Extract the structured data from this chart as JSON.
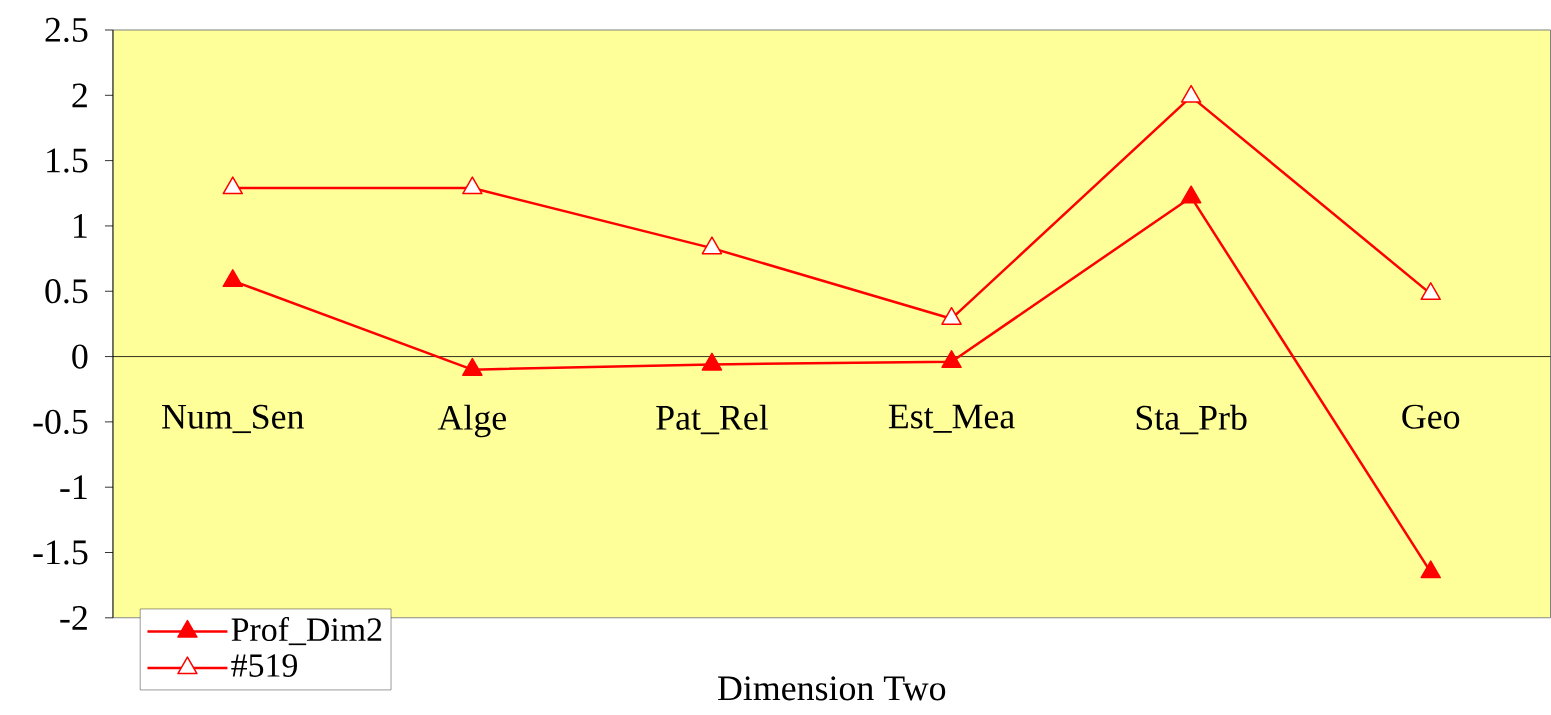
{
  "chart_data": {
    "type": "line",
    "xlabel": "Dimension Two",
    "categories": [
      "Num_Sen",
      "Alge",
      "Pat_Rel",
      "Est_Mea",
      "Sta_Prb",
      "Geo"
    ],
    "series": [
      {
        "name": "Prof_Dim2",
        "color": "#ff0000",
        "values": [
          0.58,
          -0.1,
          -0.06,
          -0.04,
          1.22,
          -1.65
        ]
      },
      {
        "name": "#519",
        "color": "#ff0000",
        "values": [
          1.29,
          1.29,
          0.83,
          0.29,
          1.99,
          0.48
        ]
      }
    ],
    "ylim": [
      -2,
      2.5
    ],
    "yticks": [
      -2,
      -1.5,
      -1,
      -0.5,
      0,
      0.5,
      1,
      1.5,
      2,
      2.5
    ],
    "legend": "bottom left",
    "marker": "triangle",
    "line_style": "solid",
    "grid": false
  }
}
